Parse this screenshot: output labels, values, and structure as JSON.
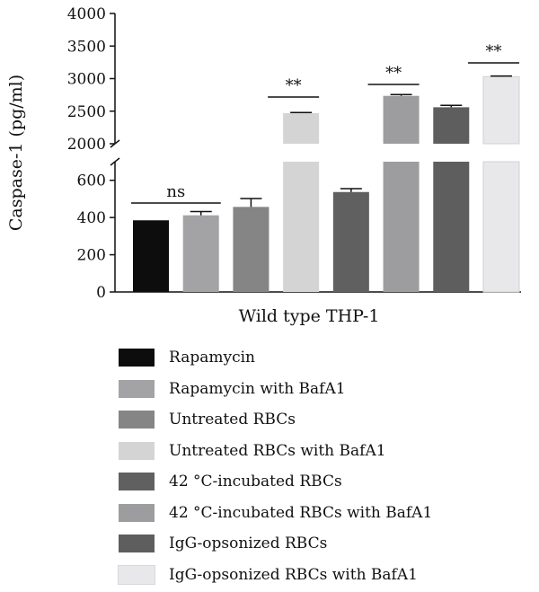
{
  "chart_data": {
    "type": "bar",
    "xlabel": "Wild type THP-1",
    "ylabel": "Caspase-1 (pg/ml)",
    "axis_break": {
      "lower_range": [
        0,
        700
      ],
      "upper_range": [
        2000,
        4000
      ]
    },
    "lower_ticks": [
      "0",
      "200",
      "400",
      "600"
    ],
    "upper_ticks": [
      "2000",
      "2500",
      "3000",
      "3500",
      "4000"
    ],
    "series": [
      {
        "name": "Rapamycin",
        "value": 385,
        "error": 0,
        "color": "#0d0d0d"
      },
      {
        "name": "Rapamycin with BafA1",
        "value": 412,
        "error": 20,
        "color": "#a3a3a6"
      },
      {
        "name": "Untreated RBCs",
        "value": 457,
        "error": 45,
        "color": "#858585"
      },
      {
        "name": "Untreated RBCs with BafA1",
        "value": 2470,
        "error": 10,
        "color": "#d4d4d4"
      },
      {
        "name": "42 °C-incubated RBCs",
        "value": 537,
        "error": 18,
        "color": "#606060"
      },
      {
        "name": "42 °C-incubated RBCs with BafA1",
        "value": 2735,
        "error": 20,
        "color": "#9d9d9f"
      },
      {
        "name": "IgG-opsonized RBCs",
        "value": 2560,
        "error": 30,
        "color": "#5e5e5e"
      },
      {
        "name": "IgG-opsonized RBCs with BafA1",
        "value": 3030,
        "error": 10,
        "color": "#e8e8ea"
      }
    ],
    "annotations": [
      {
        "text": "ns",
        "from": 0,
        "to": 1
      },
      {
        "text": "**",
        "from": 3,
        "to": 3
      },
      {
        "text": "**",
        "from": 5,
        "to": 5
      },
      {
        "text": "**",
        "from": 7,
        "to": 7
      }
    ],
    "legend_position": "bottom",
    "grid": false
  }
}
